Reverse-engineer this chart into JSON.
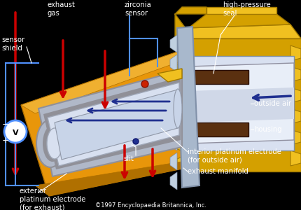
{
  "bg_color": "#000000",
  "label_color": "#ffffff",
  "copyright": "©1997 Encyclopaedia Britannica, Inc.",
  "labels": {
    "sensor_shield": "sensor\nshield",
    "exhaust_gas": "exhaust\ngas",
    "zirconia_sensor": "zirconia\nsensor",
    "high_pressure_seal": "high-pressure\nseal",
    "outside_air": "outside air",
    "housing": "housing",
    "interior_electrode": "interior platinum electrode\n(for outside air)",
    "exhaust_manifold": "exhaust manifold",
    "exterior_electrode": "exterior\nplatinum electrode\n(for exhaust)",
    "slit": "slit"
  },
  "colors": {
    "orange_body": "#E8960A",
    "orange_dark": "#B07000",
    "orange_light": "#F0B030",
    "silver_outer": "#B0B8C8",
    "silver_mid": "#909098",
    "silver_light": "#D8E0F0",
    "silver_white": "#E8EEF8",
    "blue_arrow": "#203090",
    "blue_arrow2": "#3040B0",
    "red_arrow": "#CC0000",
    "gold_body": "#D4A000",
    "gold_light": "#F0C020",
    "gold_dark": "#A07800",
    "manifold_blue": "#A8B8CC",
    "manifold_light": "#C0D0E0",
    "brown_seal": "#5A3010",
    "line_blue": "#5090FF",
    "line_white": "#FFFFFF",
    "line_black": "#C8C8C8"
  }
}
